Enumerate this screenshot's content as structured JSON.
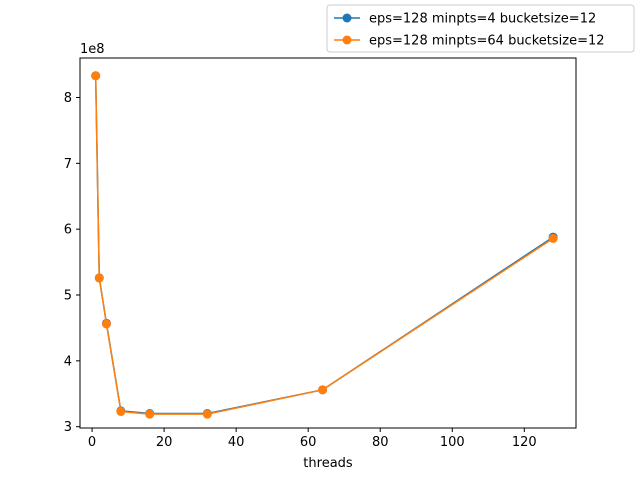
{
  "chart_data": {
    "type": "line",
    "title": "",
    "xlabel": "threads",
    "ylabel": "",
    "y_offset_text": "1e8",
    "xlim": [
      -3.35,
      134.35
    ],
    "ylim": [
      298000000.0,
      860000000.0
    ],
    "x_ticks": [
      0,
      20,
      40,
      60,
      80,
      100,
      120
    ],
    "x_tick_labels": [
      "0",
      "20",
      "40",
      "60",
      "80",
      "100",
      "120"
    ],
    "y_ticks": [
      300000000.0,
      400000000.0,
      500000000.0,
      600000000.0,
      700000000.0,
      800000000.0
    ],
    "y_tick_labels": [
      "3",
      "4",
      "5",
      "6",
      "7",
      "8"
    ],
    "grid": false,
    "legend_position": "upper right, outside plot",
    "series": [
      {
        "name": "eps=128 minpts=4 bucketsize=12",
        "color": "#1f77b4",
        "x": [
          1,
          2,
          4,
          8,
          16,
          32,
          64,
          128
        ],
        "y": [
          833000000,
          526000000,
          457000000,
          324000000,
          320000000,
          320000000,
          356000000,
          588000000
        ]
      },
      {
        "name": "eps=128 minpts=64 bucketsize=12",
        "color": "#ff7f0e",
        "x": [
          1,
          2,
          4,
          8,
          16,
          32,
          64,
          128
        ],
        "y": [
          833000000,
          526000000,
          456000000,
          323000000,
          319000000,
          319000000,
          356000000,
          586000000
        ]
      }
    ]
  }
}
